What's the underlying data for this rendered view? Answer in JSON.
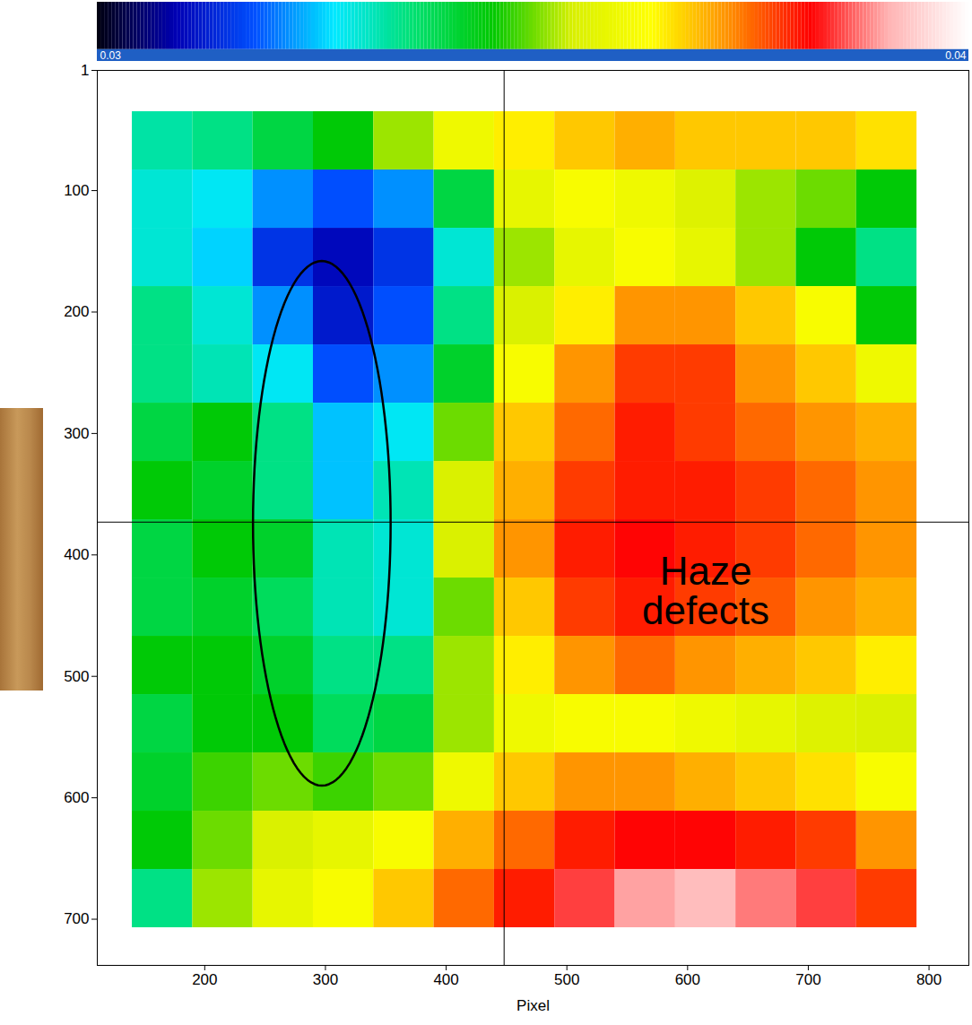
{
  "chart_data": {
    "type": "heatmap",
    "x_label": "Pixel",
    "xlim": [
      111,
      833
    ],
    "ylim": [
      1,
      738
    ],
    "xticks": [
      200,
      300,
      400,
      500,
      600,
      700,
      800
    ],
    "yticks": [
      1,
      100,
      200,
      300,
      400,
      500,
      600,
      700
    ],
    "grid": false,
    "x_bins": [
      140,
      190,
      240,
      290,
      340,
      390,
      440,
      490,
      540,
      590,
      640,
      690,
      740,
      790
    ],
    "y_bins": [
      35,
      83,
      131,
      179,
      227,
      275,
      323,
      371,
      419,
      467,
      515,
      563,
      611,
      659,
      707
    ],
    "values": [
      [
        0.0333,
        0.0335,
        0.034,
        0.0345,
        0.0352,
        0.036,
        0.0365,
        0.0368,
        0.037,
        0.0368,
        0.0368,
        0.0368,
        0.0366
      ],
      [
        0.033,
        0.0328,
        0.0322,
        0.0318,
        0.0322,
        0.034,
        0.0358,
        0.0362,
        0.036,
        0.0356,
        0.0352,
        0.035,
        0.0345
      ],
      [
        0.033,
        0.0326,
        0.0315,
        0.031,
        0.0315,
        0.033,
        0.0352,
        0.0358,
        0.0362,
        0.0358,
        0.0352,
        0.0345,
        0.0335
      ],
      [
        0.0335,
        0.033,
        0.0322,
        0.0312,
        0.0318,
        0.0335,
        0.0355,
        0.0365,
        0.0372,
        0.0372,
        0.0368,
        0.0362,
        0.0345
      ],
      [
        0.0335,
        0.0332,
        0.0328,
        0.0318,
        0.0322,
        0.0342,
        0.0362,
        0.0372,
        0.0378,
        0.0378,
        0.0372,
        0.0368,
        0.036
      ],
      [
        0.034,
        0.0345,
        0.0335,
        0.0325,
        0.0328,
        0.035,
        0.0368,
        0.0375,
        0.038,
        0.0378,
        0.0375,
        0.0372,
        0.037
      ],
      [
        0.0345,
        0.0342,
        0.0335,
        0.0325,
        0.0332,
        0.0355,
        0.037,
        0.0378,
        0.038,
        0.038,
        0.0378,
        0.0375,
        0.0372
      ],
      [
        0.034,
        0.0345,
        0.0342,
        0.0332,
        0.033,
        0.0355,
        0.0372,
        0.038,
        0.0382,
        0.038,
        0.0378,
        0.0375,
        0.0372
      ],
      [
        0.034,
        0.0342,
        0.0338,
        0.0332,
        0.033,
        0.035,
        0.0368,
        0.0378,
        0.038,
        0.0378,
        0.0376,
        0.0372,
        0.037
      ],
      [
        0.0345,
        0.0345,
        0.0342,
        0.0335,
        0.0335,
        0.0352,
        0.0365,
        0.0372,
        0.0375,
        0.0372,
        0.037,
        0.0368,
        0.0365
      ],
      [
        0.034,
        0.0345,
        0.0345,
        0.0338,
        0.034,
        0.0352,
        0.036,
        0.0362,
        0.0362,
        0.036,
        0.0358,
        0.0356,
        0.0355
      ],
      [
        0.0342,
        0.0348,
        0.035,
        0.0348,
        0.035,
        0.036,
        0.0368,
        0.0372,
        0.0372,
        0.037,
        0.0368,
        0.0366,
        0.0362
      ],
      [
        0.0345,
        0.035,
        0.0355,
        0.0358,
        0.0362,
        0.037,
        0.0375,
        0.038,
        0.0382,
        0.0382,
        0.038,
        0.0378,
        0.0372
      ],
      [
        0.0335,
        0.0352,
        0.0358,
        0.0362,
        0.0368,
        0.0375,
        0.038,
        0.0385,
        0.039,
        0.0392,
        0.0388,
        0.0385,
        0.0378
      ]
    ],
    "colorbar": {
      "range": [
        0.03,
        0.04
      ],
      "ticks": [
        0.03,
        0.04
      ]
    },
    "annotations": [
      {
        "text": "Haze defects",
        "x": 615,
        "y": 430
      }
    ],
    "ellipse": {
      "cx": 297,
      "cy": 374,
      "rx": 57,
      "ry": 216
    },
    "crosshair": {
      "x": 448,
      "y": 373
    }
  }
}
